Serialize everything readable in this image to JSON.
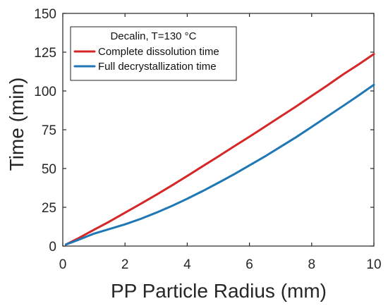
{
  "chart_data": {
    "type": "line",
    "xlabel": "PP Particle Radius (mm)",
    "ylabel": "Time (min)",
    "xlim": [
      0,
      10
    ],
    "ylim": [
      0,
      150
    ],
    "x_ticks": [
      0,
      2,
      4,
      6,
      8,
      10
    ],
    "y_ticks": [
      0,
      25,
      50,
      75,
      100,
      125,
      150
    ],
    "grid": false,
    "legend": {
      "position": "top-left",
      "title": "Decalin, T=130 °C"
    },
    "series": [
      {
        "name": "Complete dissolution time",
        "color": "#d62728",
        "x": [
          0.1,
          0.5,
          1,
          1.5,
          2,
          2.5,
          3,
          3.5,
          4,
          4.5,
          5,
          5.5,
          6,
          6.5,
          7,
          7.5,
          8,
          8.5,
          9,
          9.5,
          10
        ],
        "y": [
          1,
          5,
          10.5,
          15.8,
          21.5,
          27.2,
          33,
          39,
          45.2,
          51.5,
          57.8,
          64.2,
          70.5,
          77,
          83.5,
          90,
          96.8,
          103.5,
          110.5,
          117,
          123.8
        ]
      },
      {
        "name": "Full decrystallization time",
        "color": "#1f77b4",
        "x": [
          0.1,
          0.5,
          1,
          1.5,
          2,
          2.5,
          3,
          3.5,
          4,
          4.5,
          5,
          5.5,
          6,
          6.5,
          7,
          7.5,
          8,
          8.5,
          9,
          9.5,
          10
        ],
        "y": [
          1,
          4,
          8,
          11,
          14,
          17.5,
          21.5,
          25.8,
          30.5,
          35.5,
          40.8,
          46.2,
          52,
          57.8,
          64,
          70.2,
          76.8,
          83.5,
          90.2,
          97,
          104
        ]
      }
    ]
  }
}
